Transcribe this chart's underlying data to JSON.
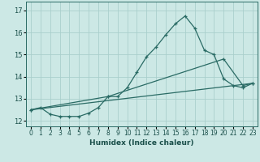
{
  "xlabel": "Humidex (Indice chaleur)",
  "bg_color": "#cce8e5",
  "grid_color": "#aacfcc",
  "line_color": "#2a6b65",
  "xlim": [
    -0.5,
    23.5
  ],
  "ylim": [
    11.75,
    17.4
  ],
  "xticks": [
    0,
    1,
    2,
    3,
    4,
    5,
    6,
    7,
    8,
    9,
    10,
    11,
    12,
    13,
    14,
    15,
    16,
    17,
    18,
    19,
    20,
    21,
    22,
    23
  ],
  "yticks": [
    12,
    13,
    14,
    15,
    16,
    17
  ],
  "line1_x": [
    0,
    1,
    2,
    3,
    4,
    5,
    6,
    7,
    8,
    9,
    10,
    11,
    12,
    13,
    14,
    15,
    16,
    17,
    18,
    19,
    20,
    21,
    22,
    23
  ],
  "line1_y": [
    12.5,
    12.6,
    12.3,
    12.2,
    12.2,
    12.2,
    12.35,
    12.6,
    13.1,
    13.1,
    13.5,
    14.2,
    14.9,
    15.35,
    15.9,
    16.4,
    16.75,
    16.2,
    15.2,
    15.0,
    13.9,
    13.6,
    13.5,
    13.7
  ],
  "line2_x": [
    0,
    8,
    20,
    22,
    23
  ],
  "line2_y": [
    12.5,
    13.1,
    14.8,
    13.6,
    13.7
  ],
  "line3_x": [
    0,
    23
  ],
  "line3_y": [
    12.5,
    13.7
  ]
}
